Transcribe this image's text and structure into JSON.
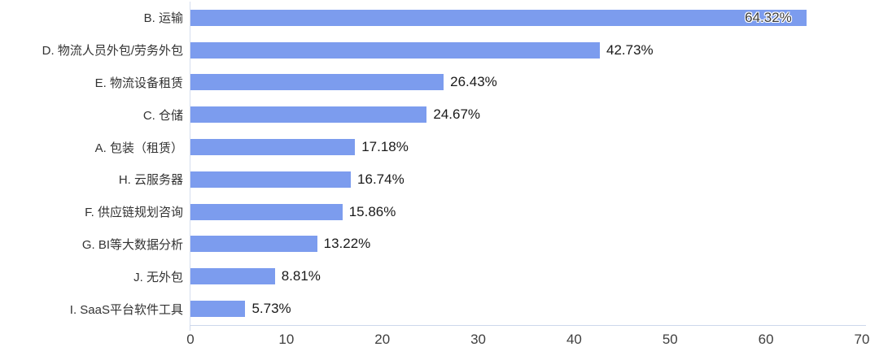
{
  "chart_data": {
    "type": "bar",
    "orientation": "horizontal",
    "title": "",
    "xlabel": "",
    "ylabel": "",
    "grid": false,
    "legend": "none",
    "xlim": [
      0,
      70
    ],
    "x_ticks": [
      "0",
      "10",
      "20",
      "30",
      "40",
      "50",
      "60",
      "70"
    ],
    "bar_color": "#7c9cee",
    "axis_line_color": "#cdd8ec",
    "categories": [
      "B. 运输",
      "D. 物流人员外包/劳务外包",
      "E. 物流设备租赁",
      "C. 仓储",
      "A. 包装（租赁）",
      "H. 云服务器",
      "F. 供应链规划咨询",
      "G. BI等大数据分析",
      "J. 无外包",
      "I. SaaS平台软件工具"
    ],
    "values": [
      64.32,
      42.73,
      26.43,
      24.67,
      17.18,
      16.74,
      15.86,
      13.22,
      8.81,
      5.73
    ],
    "value_labels": [
      "64.32%",
      "42.73%",
      "26.43%",
      "24.67%",
      "17.18%",
      "16.74%",
      "15.86%",
      "13.22%",
      "8.81%",
      "5.73%"
    ],
    "label_positions": [
      "inside",
      "outside",
      "outside",
      "outside",
      "outside",
      "outside",
      "outside",
      "outside",
      "outside",
      "outside"
    ]
  }
}
